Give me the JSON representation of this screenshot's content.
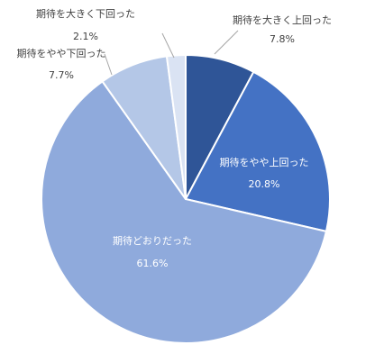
{
  "chart_data": {
    "type": "pie",
    "title": "",
    "slices": [
      {
        "label": "期待を大きく上回った",
        "value": 7.8,
        "value_label": "7.8%",
        "color": "#2f5597"
      },
      {
        "label": "期待をやや上回った",
        "value": 20.8,
        "value_label": "20.8%",
        "color": "#4472c4"
      },
      {
        "label": "期待どおりだった",
        "value": 61.6,
        "value_label": "61.6%",
        "color": "#8faadc"
      },
      {
        "label": "期待をやや下回った",
        "value": 7.7,
        "value_label": "7.7%",
        "color": "#b4c7e7"
      },
      {
        "label": "期待を大きく下回った",
        "value": 2.1,
        "value_label": "2.1%",
        "color": "#dae3f3"
      }
    ],
    "start_angle_deg": 0,
    "direction": "clockwise",
    "legend": "none",
    "slice_border_color": "#ffffff",
    "inside_label_color": "#ffffff",
    "outside_label_color": "#404040",
    "leader_line_color": "#a6a6a6"
  }
}
